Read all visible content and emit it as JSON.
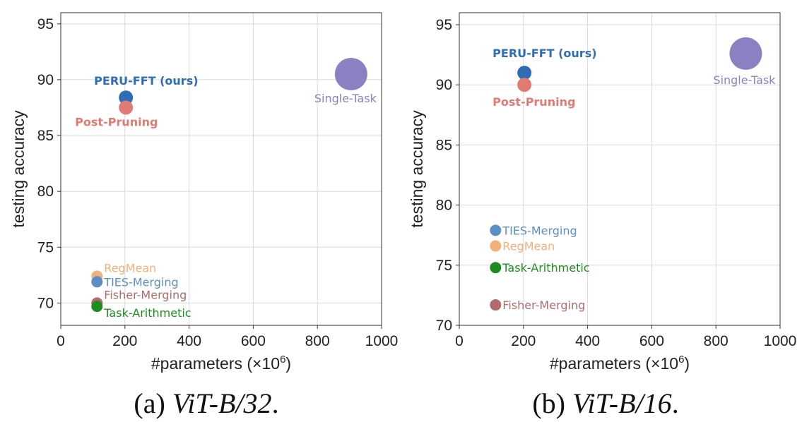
{
  "chart_data": [
    {
      "type": "scatter",
      "xlabel": "#parameters (×10",
      "xlabel_sup": "6",
      "xlabel_suffix": ")",
      "ylabel": "testing accuracy",
      "xlim": [
        0,
        1000
      ],
      "ylim": [
        68,
        96
      ],
      "xticks": [
        0,
        200,
        400,
        600,
        800,
        1000
      ],
      "yticks": [
        70,
        75,
        80,
        85,
        90,
        95
      ],
      "grid": true,
      "caption_prefix": "(a) ",
      "caption_model": "ViT-B/32",
      "caption_suffix": ".",
      "points": [
        {
          "name": "PERU-FFT (ours)",
          "x": 203,
          "y": 88.4,
          "color": "#2f6db5",
          "bold": true,
          "size": 10,
          "label_pos": "above"
        },
        {
          "name": "Post-Pruning",
          "x": 203,
          "y": 87.5,
          "color": "#e07a72",
          "bold": true,
          "size": 10,
          "label_pos": "below"
        },
        {
          "name": "Single-Task",
          "x": 905,
          "y": 90.5,
          "color": "#8a81c2",
          "bold": false,
          "size": 23,
          "label_pos": "below-left"
        },
        {
          "name": "RegMean",
          "x": 113,
          "y": 72.4,
          "color": "#f0b27a",
          "bold": false,
          "size": 8,
          "label_pos": "above-right"
        },
        {
          "name": "TIES-Merging",
          "x": 113,
          "y": 71.9,
          "color": "#5b8fc4",
          "bold": false,
          "size": 8,
          "label_pos": "right"
        },
        {
          "name": "Fisher-Merging",
          "x": 113,
          "y": 70.0,
          "color": "#b06b6b",
          "bold": false,
          "size": 8,
          "label_pos": "above-right"
        },
        {
          "name": "Task-Arithmetic",
          "x": 113,
          "y": 69.7,
          "color": "#1e8c1e",
          "bold": false,
          "size": 8,
          "label_pos": "below-right"
        }
      ]
    },
    {
      "type": "scatter",
      "xlabel": "#parameters (×10",
      "xlabel_sup": "6",
      "xlabel_suffix": ")",
      "ylabel": "testing accuracy",
      "xlim": [
        0,
        1000
      ],
      "ylim": [
        70,
        96
      ],
      "xticks": [
        0,
        200,
        400,
        600,
        800,
        1000
      ],
      "yticks": [
        70,
        75,
        80,
        85,
        90,
        95
      ],
      "grid": true,
      "caption_prefix": "(b) ",
      "caption_model": "ViT-B/16",
      "caption_suffix": ".",
      "points": [
        {
          "name": "PERU-FFT (ours)",
          "x": 203,
          "y": 91.0,
          "color": "#2f6db5",
          "bold": true,
          "size": 10,
          "label_pos": "above"
        },
        {
          "name": "Post-Pruning",
          "x": 203,
          "y": 90.0,
          "color": "#e07a72",
          "bold": true,
          "size": 10,
          "label_pos": "below"
        },
        {
          "name": "Single-Task",
          "x": 893,
          "y": 92.6,
          "color": "#8a81c2",
          "bold": false,
          "size": 23,
          "label_pos": "below"
        },
        {
          "name": "TIES-Merging",
          "x": 113,
          "y": 77.9,
          "color": "#5b8fc4",
          "bold": false,
          "size": 8,
          "label_pos": "right"
        },
        {
          "name": "RegMean",
          "x": 113,
          "y": 76.6,
          "color": "#f0b27a",
          "bold": false,
          "size": 8,
          "label_pos": "right"
        },
        {
          "name": "Task-Arithmetic",
          "x": 113,
          "y": 74.8,
          "color": "#1e8c1e",
          "bold": false,
          "size": 8,
          "label_pos": "right"
        },
        {
          "name": "Fisher-Merging",
          "x": 113,
          "y": 71.7,
          "color": "#b06b6b",
          "bold": false,
          "size": 8,
          "label_pos": "right"
        }
      ]
    }
  ]
}
